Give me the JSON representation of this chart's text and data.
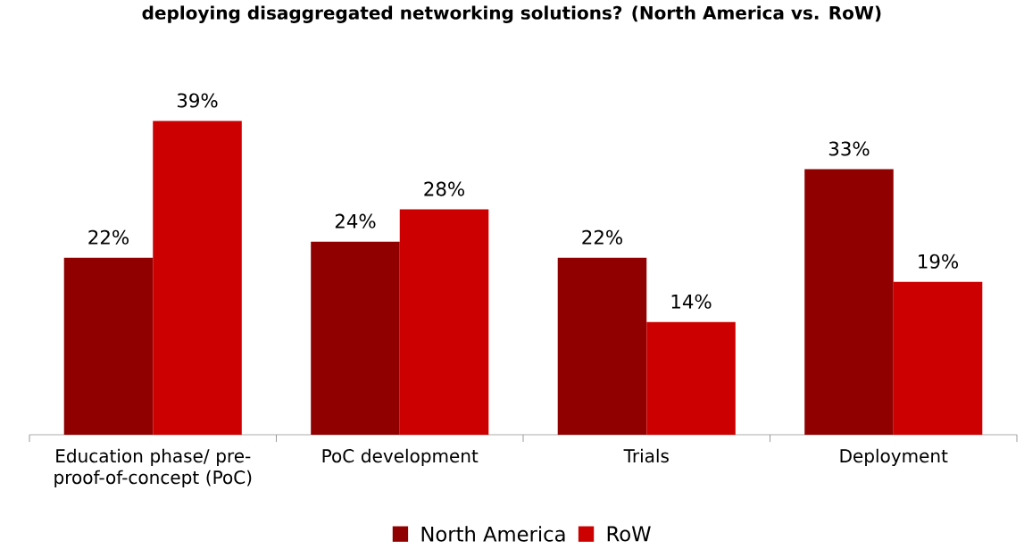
{
  "chart_data": {
    "type": "bar",
    "title": "deploying disaggregated networking solutions? (North America vs. RoW)",
    "categories": [
      "Education phase/ pre-proof-of-concept (PoC)",
      "PoC development",
      "Trials",
      "Deployment"
    ],
    "series": [
      {
        "name": "North America",
        "color": "#900000",
        "values": [
          22,
          24,
          22,
          33
        ],
        "value_labels": [
          "22%",
          "24%",
          "22%",
          "33%"
        ]
      },
      {
        "name": "RoW",
        "color": "#cc0000",
        "values": [
          39,
          28,
          14,
          19
        ],
        "value_labels": [
          "39%",
          "28%",
          "14%",
          "19%"
        ]
      }
    ],
    "legend": "bottom"
  }
}
